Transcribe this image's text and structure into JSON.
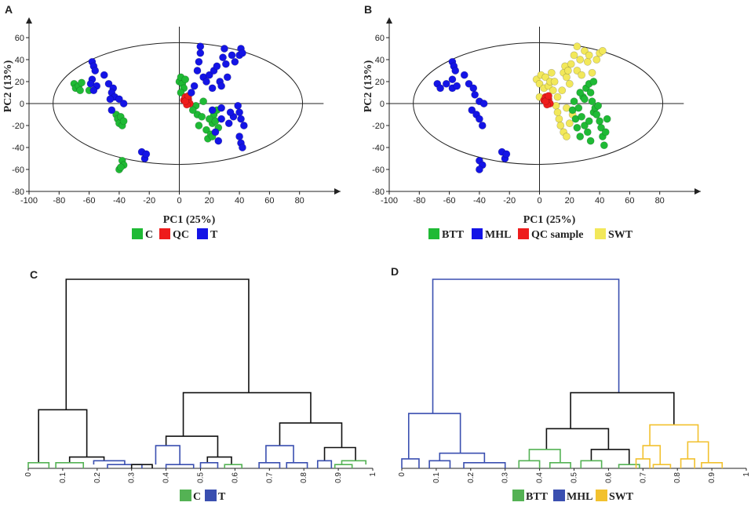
{
  "colors": {
    "green": "#1fba35",
    "blue": "#1414e6",
    "red": "#ee1c1c",
    "yellow": "#f2e85a",
    "dgreen": "#54b254",
    "dblue": "#3a4fb0",
    "dgold": "#f2c12e",
    "black": "#111111"
  },
  "chart_data": [
    {
      "panel": "A",
      "type": "scatter",
      "xlabel": "PC1 (25%)",
      "ylabel": "PC2 (13%)",
      "xlim": [
        -100,
        100
      ],
      "ylim": [
        -80,
        70
      ],
      "xticks": [
        -100,
        -80,
        -60,
        -40,
        -20,
        0,
        20,
        40,
        60,
        80
      ],
      "yticks": [
        -80,
        -60,
        -40,
        -20,
        0,
        20,
        40,
        60
      ],
      "legend": [
        {
          "label": "C",
          "color": "#1fba35"
        },
        {
          "label": "QC",
          "color": "#ee1c1c"
        },
        {
          "label": "T",
          "color": "#1414e6"
        }
      ],
      "series": [
        {
          "name": "C",
          "color": "#1fba35",
          "points": [
            [
              -70,
              18
            ],
            [
              -69,
              14
            ],
            [
              -67,
              16
            ],
            [
              -66,
              12
            ],
            [
              -65,
              19
            ],
            [
              -60,
              12
            ],
            [
              -42,
              -10
            ],
            [
              -41,
              -14
            ],
            [
              -40,
              -18
            ],
            [
              -39,
              -12
            ],
            [
              -38,
              -20
            ],
            [
              -37,
              -16
            ],
            [
              -38,
              -52
            ],
            [
              -37,
              -56
            ],
            [
              -40,
              -60
            ],
            [
              -39,
              -58
            ],
            [
              0,
              20
            ],
            [
              1,
              24
            ],
            [
              2,
              18
            ],
            [
              3,
              14
            ],
            [
              1,
              10
            ],
            [
              4,
              22
            ],
            [
              11,
              -2
            ],
            [
              12,
              -10
            ],
            [
              13,
              -20
            ],
            [
              16,
              2
            ],
            [
              18,
              -24
            ],
            [
              19,
              -32
            ],
            [
              21,
              -28
            ],
            [
              22,
              -18
            ],
            [
              23,
              -10
            ],
            [
              25,
              -6
            ],
            [
              26,
              -22
            ],
            [
              15,
              -12
            ],
            [
              20,
              -14
            ],
            [
              24,
              -16
            ],
            [
              22,
              -30
            ],
            [
              9,
              -6
            ]
          ]
        },
        {
          "name": "QC",
          "color": "#ee1c1c",
          "points": [
            [
              3,
              3
            ],
            [
              4,
              6
            ],
            [
              5,
              1
            ],
            [
              6,
              4
            ],
            [
              7,
              0
            ],
            [
              5,
              -1
            ],
            [
              4,
              2
            ],
            [
              6,
              7
            ]
          ]
        },
        {
          "name": "T",
          "color": "#1414e6",
          "points": [
            [
              -58,
              38
            ],
            [
              -57,
              34
            ],
            [
              -56,
              30
            ],
            [
              -58,
              22
            ],
            [
              -59,
              18
            ],
            [
              -55,
              16
            ],
            [
              -57,
              12
            ],
            [
              -50,
              26
            ],
            [
              -47,
              18
            ],
            [
              -44,
              14
            ],
            [
              -45,
              10
            ],
            [
              -43,
              6
            ],
            [
              -46,
              4
            ],
            [
              -40,
              4
            ],
            [
              -37,
              0
            ],
            [
              -45,
              -6
            ],
            [
              -25,
              -44
            ],
            [
              -23,
              -50
            ],
            [
              -22,
              -46
            ],
            [
              8,
              10
            ],
            [
              10,
              16
            ],
            [
              12,
              30
            ],
            [
              13,
              38
            ],
            [
              14,
              46
            ],
            [
              14,
              52
            ],
            [
              16,
              24
            ],
            [
              18,
              20
            ],
            [
              20,
              26
            ],
            [
              22,
              14
            ],
            [
              23,
              30
            ],
            [
              25,
              34
            ],
            [
              27,
              20
            ],
            [
              28,
              16
            ],
            [
              29,
              42
            ],
            [
              30,
              50
            ],
            [
              31,
              36
            ],
            [
              32,
              24
            ],
            [
              35,
              44
            ],
            [
              37,
              38
            ],
            [
              40,
              44
            ],
            [
              41,
              50
            ],
            [
              42,
              46
            ],
            [
              39,
              -2
            ],
            [
              40,
              -8
            ],
            [
              41,
              -14
            ],
            [
              43,
              -20
            ],
            [
              40,
              -30
            ],
            [
              41,
              -36
            ],
            [
              42,
              -40
            ],
            [
              24,
              -26
            ],
            [
              26,
              -34
            ],
            [
              28,
              -14
            ],
            [
              28,
              -4
            ],
            [
              33,
              -18
            ],
            [
              36,
              -12
            ],
            [
              34,
              -8
            ],
            [
              22,
              -6
            ]
          ]
        }
      ]
    },
    {
      "panel": "B",
      "type": "scatter",
      "xlabel": "PC1 (25%)",
      "ylabel": "PC2 (13%)",
      "xlim": [
        -100,
        100
      ],
      "ylim": [
        -80,
        70
      ],
      "xticks": [
        -100,
        -80,
        -60,
        -40,
        -20,
        0,
        20,
        40,
        60,
        80
      ],
      "yticks": [
        -80,
        -60,
        -40,
        -20,
        0,
        20,
        40,
        60
      ],
      "legend": [
        {
          "label": "BTT",
          "color": "#1fba35"
        },
        {
          "label": "MHL",
          "color": "#1414e6"
        },
        {
          "label": "QC sample",
          "color": "#ee1c1c"
        },
        {
          "label": "SWT",
          "color": "#f2e85a"
        }
      ],
      "series": [
        {
          "name": "MHL",
          "color": "#1414e6",
          "points": [
            [
              -58,
              38
            ],
            [
              -57,
              34
            ],
            [
              -56,
              30
            ],
            [
              -68,
              18
            ],
            [
              -66,
              14
            ],
            [
              -62,
              18
            ],
            [
              -58,
              22
            ],
            [
              -58,
              14
            ],
            [
              -55,
              16
            ],
            [
              -50,
              26
            ],
            [
              -47,
              18
            ],
            [
              -44,
              14
            ],
            [
              -43,
              8
            ],
            [
              -40,
              2
            ],
            [
              -37,
              0
            ],
            [
              -45,
              -6
            ],
            [
              -42,
              -10
            ],
            [
              -40,
              -14
            ],
            [
              -38,
              -20
            ],
            [
              -40,
              -52
            ],
            [
              -38,
              -56
            ],
            [
              -40,
              -60
            ],
            [
              -25,
              -44
            ],
            [
              -23,
              -50
            ],
            [
              -22,
              -46
            ]
          ]
        },
        {
          "name": "SWT",
          "color": "#f2e85a",
          "points": [
            [
              -2,
              22
            ],
            [
              0,
              18
            ],
            [
              1,
              26
            ],
            [
              3,
              14
            ],
            [
              0,
              6
            ],
            [
              4,
              24
            ],
            [
              6,
              16
            ],
            [
              7,
              20
            ],
            [
              8,
              28
            ],
            [
              10,
              20
            ],
            [
              11,
              -2
            ],
            [
              12,
              6
            ],
            [
              13,
              -14
            ],
            [
              15,
              12
            ],
            [
              16,
              28
            ],
            [
              17,
              34
            ],
            [
              18,
              24
            ],
            [
              19,
              30
            ],
            [
              20,
              18
            ],
            [
              21,
              36
            ],
            [
              23,
              44
            ],
            [
              25,
              30
            ],
            [
              25,
              52
            ],
            [
              27,
              40
            ],
            [
              28,
              26
            ],
            [
              30,
              48
            ],
            [
              32,
              38
            ],
            [
              33,
              44
            ],
            [
              35,
              28
            ],
            [
              38,
              40
            ],
            [
              40,
              46
            ],
            [
              42,
              48
            ],
            [
              14,
              -20
            ],
            [
              16,
              -26
            ],
            [
              18,
              -30
            ],
            [
              20,
              -18
            ],
            [
              22,
              -10
            ],
            [
              18,
              -4
            ],
            [
              12,
              -8
            ],
            [
              9,
              12
            ]
          ]
        },
        {
          "name": "BTT",
          "color": "#1fba35",
          "points": [
            [
              22,
              -6
            ],
            [
              24,
              -14
            ],
            [
              25,
              -22
            ],
            [
              27,
              -30
            ],
            [
              28,
              -12
            ],
            [
              29,
              6
            ],
            [
              31,
              14
            ],
            [
              33,
              18
            ],
            [
              34,
              10
            ],
            [
              35,
              2
            ],
            [
              36,
              -8
            ],
            [
              37,
              -4
            ],
            [
              38,
              -10
            ],
            [
              39,
              -2
            ],
            [
              40,
              -16
            ],
            [
              41,
              -22
            ],
            [
              42,
              -30
            ],
            [
              43,
              -38
            ],
            [
              44,
              -26
            ],
            [
              45,
              -14
            ],
            [
              26,
              -4
            ],
            [
              30,
              -20
            ],
            [
              32,
              -26
            ],
            [
              34,
              -34
            ],
            [
              30,
              4
            ],
            [
              36,
              20
            ],
            [
              27,
              10
            ],
            [
              23,
              2
            ],
            [
              33,
              -16
            ]
          ]
        },
        {
          "name": "QC sample",
          "color": "#ee1c1c",
          "points": [
            [
              3,
              3
            ],
            [
              4,
              6
            ],
            [
              5,
              1
            ],
            [
              6,
              4
            ],
            [
              7,
              0
            ],
            [
              5,
              -1
            ],
            [
              4,
              2
            ],
            [
              6,
              7
            ]
          ]
        }
      ]
    },
    {
      "panel": "C",
      "type": "dendrogram",
      "xticks": [
        "0",
        "0.1",
        "0.2",
        "0.3",
        "0.4",
        "0.5",
        "0.6",
        "0.7",
        "0.8",
        "0.9",
        "1"
      ],
      "legend": [
        {
          "label": "C",
          "color": "#54b254"
        },
        {
          "label": "T",
          "color": "#3a4fb0"
        }
      ],
      "leaf_groups": [
        "C",
        "C",
        "T",
        "C",
        "T",
        "C",
        "T",
        "T",
        "C",
        "T",
        "C",
        "T",
        "C",
        "C",
        "T",
        "T",
        "C",
        "T",
        "C",
        "C"
      ]
    },
    {
      "panel": "D",
      "type": "dendrogram",
      "xticks": [
        "0",
        "0.1",
        "0.2",
        "0.3",
        "0.4",
        "0.5",
        "0.6",
        "0.7",
        "0.8",
        "0.9",
        "1"
      ],
      "legend": [
        {
          "label": "BTT",
          "color": "#54b254"
        },
        {
          "label": "MHL",
          "color": "#3a4fb0"
        },
        {
          "label": "SWT",
          "color": "#f2c12e"
        }
      ],
      "leaf_groups": [
        "MHL",
        "MHL",
        "MHL",
        "MHL",
        "MHL",
        "MHL",
        "MHL",
        "BTT",
        "BTT",
        "BTT",
        "BTT",
        "BTT",
        "BTT",
        "BTT",
        "SWT",
        "SWT",
        "SWT",
        "SWT",
        "SWT",
        "SWT"
      ]
    }
  ],
  "panel_labels": {
    "a": "A",
    "b": "B",
    "c": "C",
    "d": "D"
  }
}
